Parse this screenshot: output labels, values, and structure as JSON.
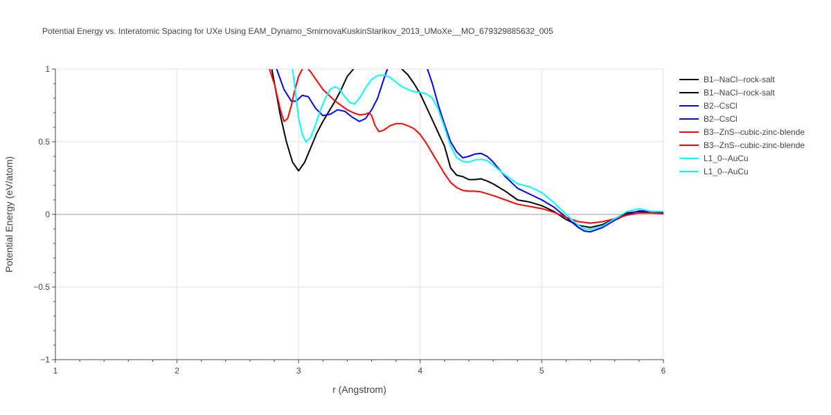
{
  "chart_data": {
    "type": "line",
    "title": "Potential Energy vs. Interatomic Spacing for UXe Using EAM_Dynamo_SmirnovaKuskinStarikov_2013_UMoXe__MO_679329885632_005",
    "xlabel": "r (Angstrom)",
    "ylabel": "Potential Energy (eV/atom)",
    "xlim": [
      1,
      6
    ],
    "ylim": [
      -1,
      1
    ],
    "x_ticks": [
      1,
      2,
      3,
      4,
      5,
      6
    ],
    "x_tick_labels": [
      "1",
      "2",
      "3",
      "4",
      "5",
      "6"
    ],
    "y_ticks": [
      -1,
      -0.5,
      0,
      0.5,
      1
    ],
    "y_tick_labels": [
      "−1",
      "−0.5",
      "0",
      "0.5",
      "1"
    ],
    "grid": true,
    "legend_position": "right",
    "series": [
      {
        "name": "B1--NaCl--rock-salt",
        "color": "#000000",
        "x": [
          2.78,
          2.85,
          2.9,
          2.95,
          3.0,
          3.05,
          3.1,
          3.15,
          3.2,
          3.25,
          3.3,
          3.35,
          3.4,
          3.45
        ],
        "y": [
          1.0,
          0.68,
          0.5,
          0.36,
          0.3,
          0.36,
          0.46,
          0.56,
          0.64,
          0.71,
          0.78,
          0.86,
          0.95,
          1.0
        ]
      },
      {
        "name": "B1--NaCl--rock-salt",
        "color": "#000000",
        "x": [
          3.85,
          3.9,
          3.95,
          4.0,
          4.05,
          4.1,
          4.15,
          4.2,
          4.25,
          4.3,
          4.35,
          4.4,
          4.45,
          4.5,
          4.55,
          4.6,
          4.7,
          4.8,
          4.9,
          5.0,
          5.1,
          5.2,
          5.3,
          5.4,
          5.5,
          5.6,
          5.7,
          5.8,
          5.9,
          6.0
        ],
        "y": [
          1.0,
          0.96,
          0.9,
          0.83,
          0.74,
          0.65,
          0.56,
          0.47,
          0.32,
          0.27,
          0.26,
          0.24,
          0.24,
          0.245,
          0.23,
          0.21,
          0.16,
          0.1,
          0.085,
          0.06,
          0.02,
          -0.035,
          -0.075,
          -0.09,
          -0.07,
          -0.03,
          0.01,
          0.02,
          0.015,
          0.01
        ]
      },
      {
        "name": "B2--CsCl",
        "color": "#0000ff",
        "x": [
          2.82,
          2.88,
          2.94,
          2.98,
          3.03,
          3.08,
          3.14,
          3.2,
          3.26,
          3.32,
          3.38,
          3.44,
          3.5,
          3.55,
          3.6,
          3.65,
          3.7,
          3.73
        ],
        "y": [
          1.0,
          0.86,
          0.78,
          0.78,
          0.82,
          0.81,
          0.73,
          0.68,
          0.69,
          0.72,
          0.71,
          0.67,
          0.64,
          0.66,
          0.72,
          0.8,
          0.93,
          1.0
        ]
      },
      {
        "name": "B2--CsCl",
        "color": "#0000ff",
        "x": [
          4.06,
          4.1,
          4.15,
          4.2,
          4.25,
          4.3,
          4.35,
          4.4,
          4.45,
          4.5,
          4.55,
          4.6,
          4.7,
          4.8,
          4.9,
          5.0,
          5.1,
          5.2,
          5.3,
          5.35,
          5.4,
          5.5,
          5.6,
          5.7,
          5.8,
          5.9,
          6.0
        ],
        "y": [
          1.0,
          0.9,
          0.75,
          0.62,
          0.5,
          0.43,
          0.39,
          0.4,
          0.415,
          0.42,
          0.4,
          0.36,
          0.26,
          0.18,
          0.14,
          0.1,
          0.05,
          -0.02,
          -0.09,
          -0.115,
          -0.12,
          -0.09,
          -0.04,
          0.0,
          0.025,
          0.02,
          0.015
        ]
      },
      {
        "name": "B3--ZnS--cubic-zinc-blende",
        "color": "#ff0000",
        "x": [
          2.76,
          2.8,
          2.85,
          2.88,
          2.91,
          2.94,
          2.97,
          3.0,
          3.03,
          3.06,
          3.1,
          3.15,
          3.2,
          3.25,
          3.3,
          3.35,
          3.4,
          3.45,
          3.5,
          3.55,
          3.58,
          3.6,
          3.63,
          3.66,
          3.7,
          3.75,
          3.8,
          3.85,
          3.9,
          3.95,
          4.0,
          4.05,
          4.1,
          4.15,
          4.2,
          4.25,
          4.3,
          4.35,
          4.4,
          4.45,
          4.5,
          4.6,
          4.7,
          4.8,
          4.9,
          5.0,
          5.1,
          5.2,
          5.3,
          5.4,
          5.5,
          5.6,
          5.7,
          5.8,
          5.9,
          6.0
        ],
        "y": [
          1.0,
          0.9,
          0.72,
          0.64,
          0.66,
          0.75,
          0.86,
          0.95,
          1.0,
          1.02,
          0.98,
          0.92,
          0.86,
          0.82,
          0.78,
          0.75,
          0.72,
          0.7,
          0.685,
          0.69,
          0.7,
          0.68,
          0.61,
          0.57,
          0.58,
          0.61,
          0.625,
          0.625,
          0.61,
          0.59,
          0.55,
          0.49,
          0.42,
          0.35,
          0.28,
          0.22,
          0.185,
          0.165,
          0.16,
          0.16,
          0.155,
          0.13,
          0.1,
          0.07,
          0.055,
          0.04,
          0.015,
          -0.02,
          -0.05,
          -0.06,
          -0.05,
          -0.03,
          -0.005,
          0.01,
          0.01,
          0.005
        ]
      },
      {
        "name": "L1_0--AuCu",
        "color": "#00ffff",
        "x": [
          2.95,
          2.98,
          3.0,
          3.03,
          3.06,
          3.1,
          3.14,
          3.18,
          3.22,
          3.26,
          3.3,
          3.34,
          3.38,
          3.42,
          3.46,
          3.5,
          3.55,
          3.6,
          3.65,
          3.7,
          3.75,
          3.8,
          3.85,
          3.9,
          3.95,
          4.0,
          4.05,
          4.1,
          4.15,
          4.2,
          4.25,
          4.3,
          4.35,
          4.4,
          4.45,
          4.5,
          4.55,
          4.6,
          4.7,
          4.8,
          4.9,
          5.0,
          5.1,
          5.2,
          5.3,
          5.35,
          5.4,
          5.5,
          5.6,
          5.7,
          5.8,
          5.9,
          6.0
        ],
        "y": [
          1.0,
          0.8,
          0.66,
          0.55,
          0.5,
          0.53,
          0.62,
          0.72,
          0.8,
          0.86,
          0.88,
          0.86,
          0.81,
          0.77,
          0.76,
          0.8,
          0.87,
          0.93,
          0.955,
          0.96,
          0.945,
          0.91,
          0.88,
          0.86,
          0.845,
          0.84,
          0.83,
          0.8,
          0.72,
          0.6,
          0.47,
          0.39,
          0.365,
          0.36,
          0.375,
          0.38,
          0.37,
          0.34,
          0.27,
          0.21,
          0.19,
          0.15,
          0.08,
          0.0,
          -0.075,
          -0.1,
          -0.105,
          -0.08,
          -0.03,
          0.02,
          0.04,
          0.02,
          0.02
        ]
      }
    ],
    "legend": [
      {
        "label": "B1--NaCl--rock-salt",
        "color": "#000000"
      },
      {
        "label": "B1--NaCl--rock-salt",
        "color": "#000000"
      },
      {
        "label": "B2--CsCl",
        "color": "#0000ff"
      },
      {
        "label": "B2--CsCl",
        "color": "#0000ff"
      },
      {
        "label": "B3--ZnS--cubic-zinc-blende",
        "color": "#ff0000"
      },
      {
        "label": "B3--ZnS--cubic-zinc-blende",
        "color": "#ff0000"
      },
      {
        "label": "L1_0--AuCu",
        "color": "#00ffff"
      },
      {
        "label": "L1_0--AuCu",
        "color": "#00ffff"
      }
    ]
  }
}
